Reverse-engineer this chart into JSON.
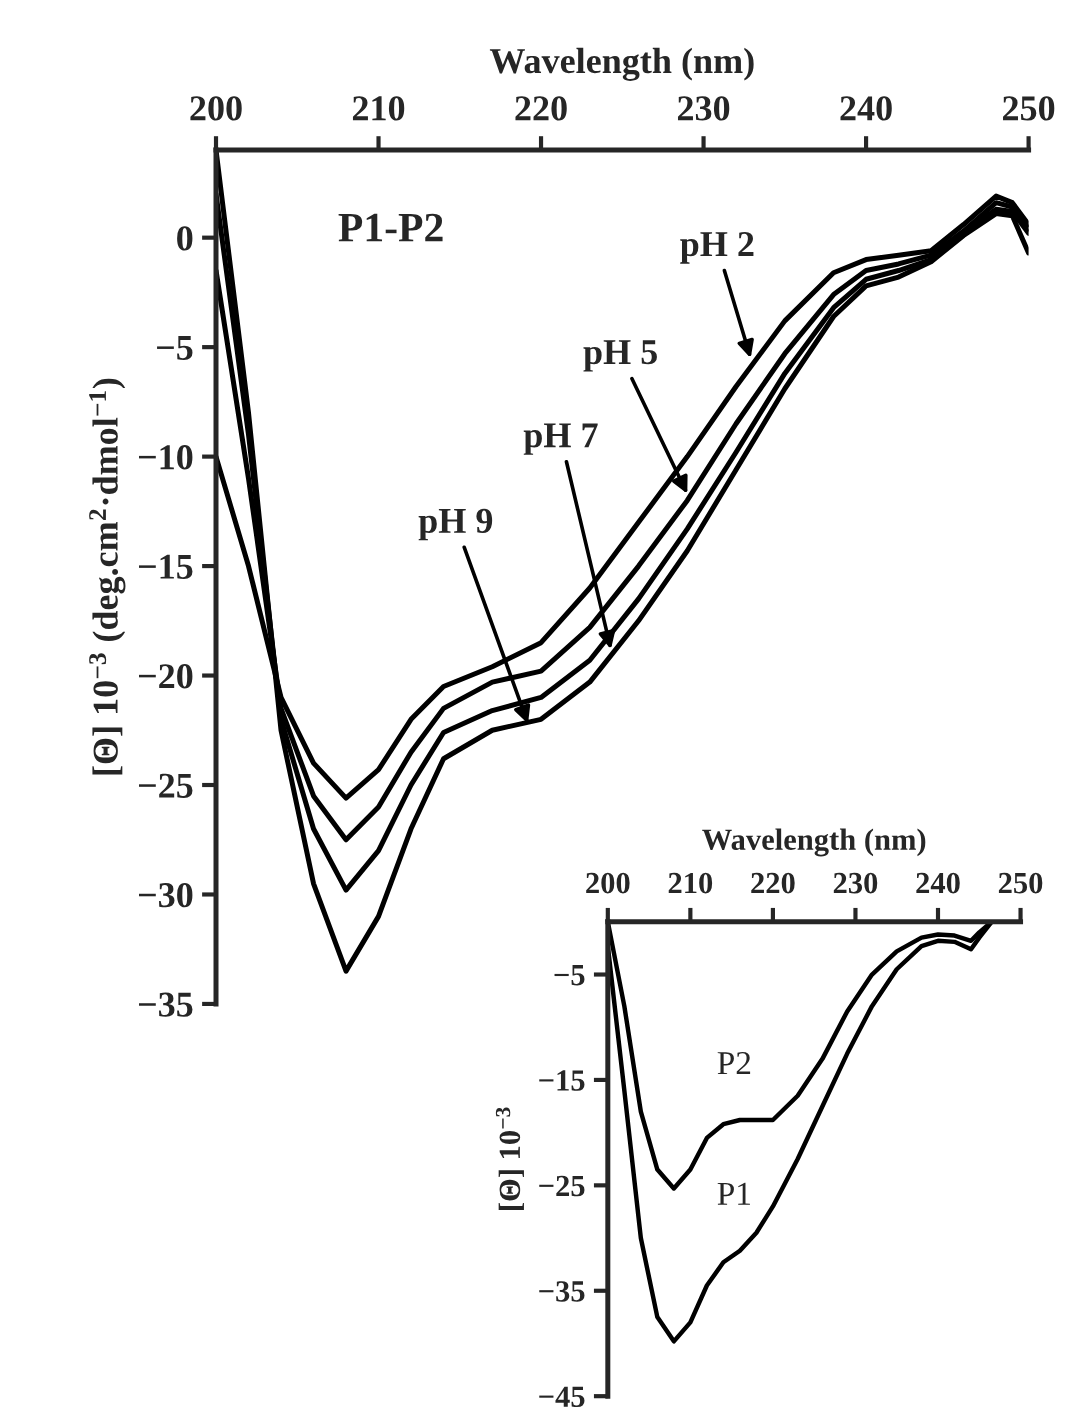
{
  "chart_data": [
    {
      "type": "line",
      "xlabel": "Wavelength (nm)",
      "ylabel": "[Θ] 10$^{−3}$ (deg.cm$^{2}$·dmol$^{−1}$)",
      "xlim": [
        200,
        250
      ],
      "xticks": [
        200,
        210,
        220,
        230,
        240,
        250
      ],
      "ylim": [
        -35,
        4
      ],
      "yticks": [
        0,
        {
          "value": -5,
          "label": "−5"
        },
        {
          "value": -10,
          "label": "−10"
        },
        {
          "value": -15,
          "label": "−15"
        },
        {
          "value": -20,
          "label": "−20"
        },
        {
          "value": -25,
          "label": "−25"
        },
        {
          "value": -30,
          "label": "−30"
        },
        {
          "value": -35,
          "label": "−35"
        }
      ],
      "grid": false,
      "legend": false,
      "marker": "none",
      "line_style": "solid",
      "x": [
        200,
        202,
        204,
        206,
        208,
        210,
        212,
        214,
        217,
        220,
        223,
        226,
        229,
        232,
        235,
        238,
        240,
        242,
        244,
        246,
        248,
        249,
        250
      ],
      "series": [
        {
          "color": "#000000",
          "values": [
            -10,
            -15,
            -21,
            -24,
            -25.6,
            -24.3,
            -22,
            -20.5,
            -19.6,
            -18.5,
            -16,
            -13,
            -10,
            -6.8,
            -3.8,
            -1.6,
            -1.0,
            -0.8,
            -0.6,
            0.6,
            1.9,
            1.6,
            0.6
          ]
        },
        {
          "color": "#000000",
          "values": [
            -1.5,
            -11,
            -21.5,
            -25.5,
            -27.5,
            -26,
            -23.5,
            -21.5,
            -20.3,
            -19.8,
            -17.8,
            -15,
            -12,
            -8.5,
            -5.3,
            -2.6,
            -1.5,
            -1.2,
            -0.8,
            0.3,
            1.6,
            1.4,
            0.4
          ]
        },
        {
          "color": "#000000",
          "values": [
            2,
            -9,
            -22,
            -27,
            -29.8,
            -28,
            -25,
            -22.6,
            -21.6,
            -21,
            -19.3,
            -16.5,
            -13.3,
            -9.8,
            -6.2,
            -3.2,
            -1.9,
            -1.5,
            -1.0,
            0.2,
            1.3,
            1.2,
            0.2
          ]
        },
        {
          "color": "#000000",
          "values": [
            4,
            -8,
            -22.5,
            -29.5,
            -33.5,
            -31,
            -27,
            -23.8,
            -22.5,
            -22,
            -20.3,
            -17.5,
            -14.3,
            -10.6,
            -6.9,
            -3.6,
            -2.2,
            -1.8,
            -1.1,
            0.1,
            1.1,
            1.0,
            -0.7
          ]
        }
      ],
      "annotations": [
        "P1-P2",
        {
          "text": "pH 2",
          "x": 232.9,
          "y": -5.5
        },
        {
          "text": "pH 5",
          "x": 229,
          "y": -11.7
        },
        {
          "text": "pH 7",
          "x": 224.3,
          "y": -18.8
        },
        {
          "text": "pH 9",
          "x": 219.2,
          "y": -22.2
        }
      ]
    },
    {
      "type": "line",
      "xlabel": "Wavelength (nm)",
      "ylabel": "[Θ] 10$^{−3}$",
      "xlim": [
        200,
        250
      ],
      "xticks": [
        200,
        210,
        220,
        230,
        240,
        250
      ],
      "ylim": [
        -45,
        0
      ],
      "yticks": [
        {
          "value": -5,
          "label": "−5"
        },
        {
          "value": -15,
          "label": "−15"
        },
        {
          "value": -25,
          "label": "−25"
        },
        {
          "value": -35,
          "label": "−35"
        },
        {
          "value": -45,
          "label": "−45"
        }
      ],
      "grid": false,
      "legend": false,
      "marker": "none",
      "line_style": "solid",
      "x": [
        200,
        202,
        204,
        206,
        208,
        210,
        212,
        214,
        216,
        218,
        220,
        223,
        226,
        229,
        232,
        235,
        238,
        240,
        242,
        244,
        245,
        246.5
      ],
      "series": [
        {
          "name": "P1",
          "color": "#000000",
          "values": [
            -2.3,
            -16,
            -30,
            -37.5,
            -39.8,
            -38,
            -34.5,
            -32.3,
            -31.2,
            -29.5,
            -27,
            -22.5,
            -17.5,
            -12.5,
            -8,
            -4.5,
            -2.3,
            -1.8,
            -1.9,
            -2.6,
            -1.5,
            0
          ]
        },
        {
          "name": "P2",
          "color": "#000000",
          "values": [
            0,
            -8,
            -18,
            -23.5,
            -25.3,
            -23.5,
            -20.5,
            -19.2,
            -18.8,
            -18.8,
            -18.8,
            -16.5,
            -13,
            -8.5,
            -5,
            -2.8,
            -1.5,
            -1.2,
            -1.3,
            -1.8,
            -1,
            0
          ]
        }
      ]
    }
  ]
}
